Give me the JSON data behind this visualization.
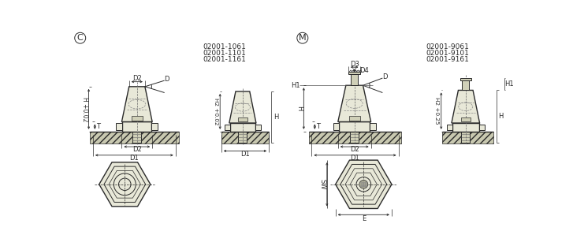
{
  "bg_color": "#ffffff",
  "line_color": "#2a2a2a",
  "fill_light": "#e8e8d8",
  "fill_mid": "#d0d0b8",
  "fill_dark": "#b0b098",
  "hatch_fill": "#c8c8b0",
  "left_codes": [
    "02001-1061",
    "02001-1101",
    "02001-1161"
  ],
  "right_codes": [
    "02001-9061",
    "02001-9101",
    "02001-9161"
  ]
}
